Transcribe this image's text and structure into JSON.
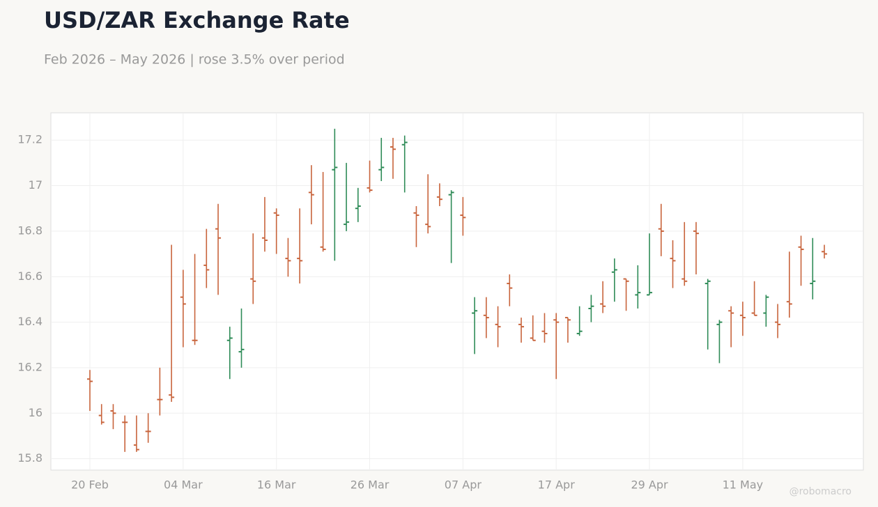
{
  "chart_data": {
    "type": "ohlc",
    "title": "USD/ZAR Exchange Rate",
    "subtitle": "Feb 2026 – May 2026 | rose 3.5% over period",
    "watermark": "@robomacro",
    "up_color": "#2e8b57",
    "down_color": "#c8643c",
    "grid": true,
    "categories": [
      "20 Feb",
      null,
      null,
      null,
      null,
      null,
      null,
      null,
      "04 Mar",
      null,
      null,
      null,
      null,
      null,
      null,
      null,
      "16 Mar",
      null,
      null,
      null,
      null,
      null,
      null,
      null,
      "26 Mar",
      null,
      null,
      null,
      null,
      null,
      null,
      null,
      "07 Apr",
      null,
      null,
      null,
      null,
      null,
      null,
      null,
      "17 Apr",
      null,
      null,
      null,
      null,
      null,
      null,
      null,
      "29 Apr",
      null,
      null,
      null,
      null,
      null,
      null,
      null,
      "11 May",
      null,
      null,
      null,
      null,
      null,
      null,
      null
    ],
    "open": [
      16.15,
      15.99,
      16.01,
      15.96,
      15.86,
      15.92,
      16.06,
      16.08,
      16.51,
      16.32,
      16.65,
      16.81,
      16.32,
      16.27,
      16.59,
      16.77,
      16.88,
      16.68,
      16.68,
      16.97,
      16.73,
      17.07,
      16.83,
      16.9,
      16.99,
      17.07,
      17.17,
      17.18,
      16.88,
      16.83,
      16.95,
      16.96,
      16.87,
      16.44,
      16.43,
      16.39,
      16.57,
      16.39,
      16.33,
      16.36,
      16.41,
      16.42,
      16.35,
      16.46,
      16.48,
      16.62,
      16.59,
      16.52,
      16.52,
      16.81,
      16.68,
      16.59,
      16.8,
      16.57,
      16.39,
      16.45,
      16.43,
      16.44,
      16.44,
      16.4,
      16.49,
      16.73,
      16.57,
      16.71
    ],
    "high": [
      16.19,
      16.04,
      16.04,
      15.99,
      15.99,
      16.0,
      16.2,
      16.74,
      16.63,
      16.7,
      16.81,
      16.92,
      16.38,
      16.46,
      16.79,
      16.95,
      16.9,
      16.77,
      16.9,
      17.09,
      17.06,
      17.25,
      17.1,
      16.99,
      17.11,
      17.21,
      17.21,
      17.22,
      16.91,
      17.05,
      17.01,
      16.98,
      16.95,
      16.51,
      16.51,
      16.47,
      16.61,
      16.42,
      16.43,
      16.44,
      16.44,
      16.42,
      16.47,
      16.52,
      16.58,
      16.68,
      16.59,
      16.65,
      16.79,
      16.92,
      16.76,
      16.84,
      16.84,
      16.59,
      16.41,
      16.47,
      16.49,
      16.58,
      16.52,
      16.48,
      16.71,
      16.78,
      16.77,
      16.74
    ],
    "low": [
      16.01,
      15.95,
      15.93,
      15.83,
      15.83,
      15.87,
      15.99,
      16.05,
      16.29,
      16.3,
      16.55,
      16.52,
      16.15,
      16.2,
      16.48,
      16.71,
      16.7,
      16.6,
      16.57,
      16.83,
      16.71,
      16.67,
      16.8,
      16.84,
      16.97,
      17.02,
      17.03,
      16.97,
      16.73,
      16.79,
      16.91,
      16.66,
      16.78,
      16.26,
      16.33,
      16.29,
      16.47,
      16.31,
      16.32,
      16.31,
      16.15,
      16.31,
      16.34,
      16.4,
      16.44,
      16.49,
      16.45,
      16.46,
      16.52,
      16.69,
      16.55,
      16.56,
      16.61,
      16.28,
      16.22,
      16.29,
      16.34,
      16.43,
      16.38,
      16.33,
      16.42,
      16.56,
      16.5,
      16.68
    ],
    "close": [
      16.14,
      15.96,
      16.0,
      15.96,
      15.84,
      15.92,
      16.06,
      16.07,
      16.48,
      16.32,
      16.63,
      16.77,
      16.33,
      16.28,
      16.58,
      16.76,
      16.87,
      16.67,
      16.67,
      16.96,
      16.72,
      17.08,
      16.84,
      16.91,
      16.98,
      17.08,
      17.16,
      17.19,
      16.87,
      16.82,
      16.94,
      16.97,
      16.86,
      16.45,
      16.42,
      16.38,
      16.55,
      16.38,
      16.32,
      16.35,
      16.4,
      16.41,
      16.36,
      16.47,
      16.47,
      16.63,
      16.58,
      16.53,
      16.53,
      16.8,
      16.67,
      16.58,
      16.79,
      16.58,
      16.4,
      16.44,
      16.42,
      16.43,
      16.51,
      16.39,
      16.48,
      16.72,
      16.58,
      16.7
    ],
    "ylim": [
      15.75,
      17.32
    ],
    "yticks": [
      15.8,
      16,
      16.2,
      16.4,
      16.6,
      16.8,
      17,
      17.2
    ]
  }
}
